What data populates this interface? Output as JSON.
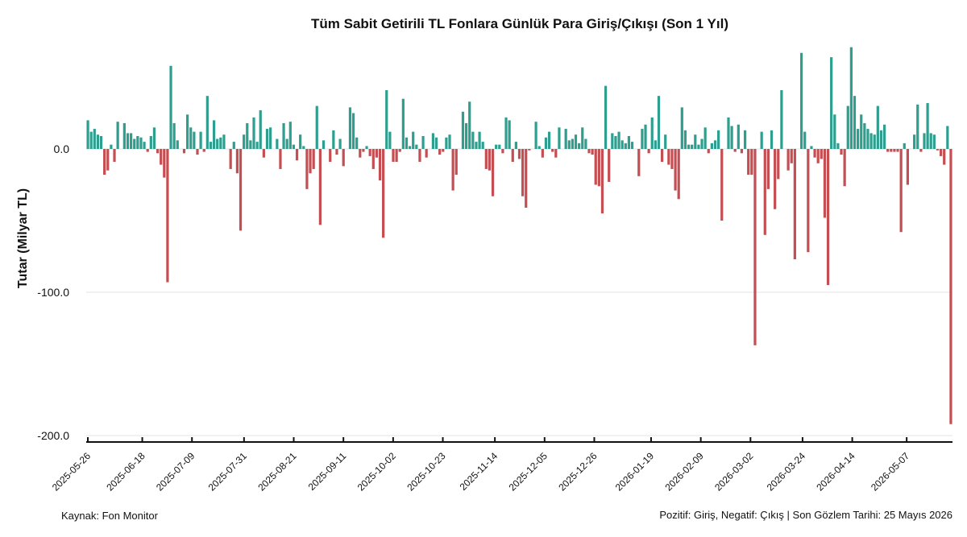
{
  "chart_data": {
    "type": "bar",
    "title": "Tüm Sabit Getirili TL Fonlara Günlük Para Giriş/Çıkışı (Son 1 Yıl)",
    "xlabel": "",
    "ylabel": "Tutar (Milyar TL)",
    "ylim": [
      -202,
      70
    ],
    "yticks": [
      0.0,
      -100.0,
      -200.0
    ],
    "ytick_labels": [
      "0.0",
      "-100.0",
      "-200.0"
    ],
    "x_start": "2025-05-26",
    "x_end": "2026-05-25",
    "xtick_labels": [
      "2025-05-26",
      "2025-06-18",
      "2025-07-09",
      "2025-07-31",
      "2025-08-21",
      "2025-09-11",
      "2025-10-02",
      "2025-10-23",
      "2025-11-14",
      "2025-12-05",
      "2025-12-26",
      "2026-01-19",
      "2026-02-09",
      "2026-03-02",
      "2026-03-24",
      "2026-04-14",
      "2026-05-07"
    ],
    "grid": "horizontal",
    "colors": {
      "positive": "#2e9e8f",
      "negative": "#c44e52"
    },
    "values": [
      20,
      12,
      14,
      10,
      9,
      -18,
      -15,
      3,
      -9,
      19,
      0,
      18,
      11,
      11,
      7,
      9,
      8,
      5,
      -2,
      9,
      15,
      -3,
      -11,
      -20,
      -93,
      58,
      18,
      6,
      0,
      -3,
      24,
      15,
      12,
      -4,
      12,
      -2,
      37,
      5,
      20,
      7,
      8,
      10,
      0,
      -14,
      5,
      -17,
      -57,
      10,
      18,
      6,
      22,
      5,
      27,
      -6,
      14,
      15,
      0,
      7,
      -14,
      18,
      7,
      19,
      3,
      -8,
      10,
      2,
      -28,
      -17,
      -14,
      30,
      -53,
      6,
      0,
      -9,
      13,
      -4,
      7,
      -12,
      0,
      29,
      25,
      8,
      -6,
      -2,
      2,
      -5,
      -14,
      -6,
      -22,
      -62,
      41,
      12,
      -9,
      -9,
      -2,
      35,
      8,
      2,
      12,
      3,
      -9,
      9,
      -6,
      0,
      11,
      8,
      -4,
      -2,
      8,
      10,
      -29,
      -18,
      0,
      26,
      18,
      33,
      12,
      5,
      12,
      5,
      -14,
      -15,
      -33,
      3,
      3,
      -3,
      22,
      20,
      -9,
      5,
      -7,
      -33,
      -41,
      -1,
      0,
      19,
      2,
      -6,
      8,
      12,
      -2,
      -6,
      15,
      0,
      14,
      6,
      7,
      10,
      4,
      15,
      7,
      -3,
      -4,
      -25,
      -26,
      -45,
      44,
      -23,
      11,
      9,
      12,
      6,
      4,
      9,
      5,
      0,
      -19,
      14,
      17,
      -3,
      22,
      6,
      37,
      -9,
      10,
      -11,
      -14,
      -29,
      -35,
      29,
      13,
      3,
      3,
      10,
      3,
      7,
      15,
      -3,
      4,
      6,
      13,
      -50,
      0,
      22,
      16,
      -2,
      17,
      -3,
      13,
      -18,
      -18,
      -137,
      0,
      12,
      -60,
      -28,
      13,
      -42,
      -21,
      41,
      0,
      -15,
      -10,
      -77,
      0,
      67,
      12,
      -72,
      2,
      -6,
      -10,
      -7,
      -48,
      -95,
      64,
      24,
      4,
      -4,
      -26,
      30,
      71,
      37,
      14,
      24,
      18,
      14,
      11,
      10,
      30,
      13,
      17,
      -2,
      -2,
      -2,
      -2,
      -58,
      4,
      -25,
      0,
      10,
      31,
      -2,
      11,
      32,
      11,
      10,
      -1,
      -5,
      -11,
      16,
      -192
    ],
    "annotations": []
  },
  "footer": {
    "source": "Kaynak: Fon Monitor",
    "note": "Pozitif: Giriş, Negatif: Çıkış | Son Gözlem Tarihi: 25 Mayıs 2026"
  }
}
